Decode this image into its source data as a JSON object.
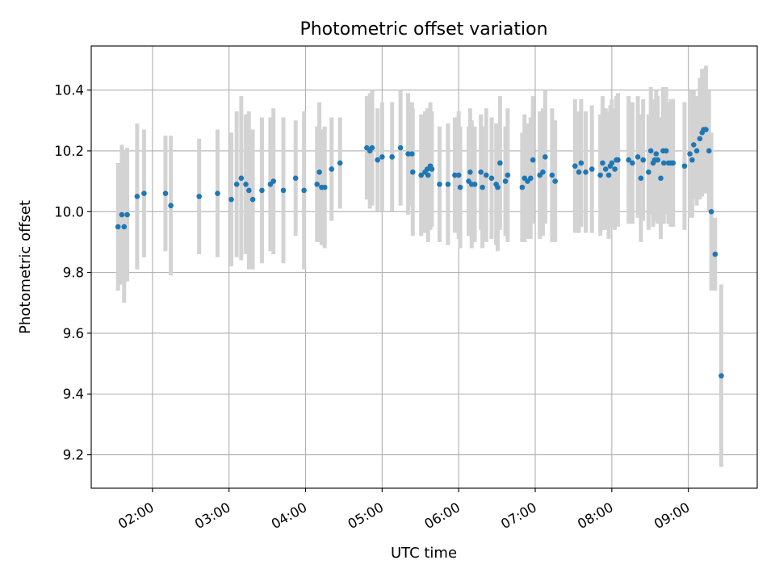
{
  "chart_data": {
    "type": "scatter",
    "title": "Photometric offset variation",
    "xlabel": "UTC time",
    "ylabel": "Photometric offset",
    "x_unit": "UTC hours",
    "xlim": [
      1.2,
      9.9
    ],
    "ylim": [
      9.09,
      10.545
    ],
    "x_ticks": [
      2,
      3,
      4,
      5,
      6,
      7,
      8,
      9
    ],
    "x_tick_labels": [
      "02:00",
      "03:00",
      "04:00",
      "05:00",
      "06:00",
      "07:00",
      "08:00",
      "09:00"
    ],
    "y_ticks": [
      9.2,
      9.4,
      9.6,
      9.8,
      10.0,
      10.2,
      10.4
    ],
    "y_tick_labels": [
      "9.2",
      "9.4",
      "9.6",
      "9.8",
      "10.0",
      "10.2",
      "10.4"
    ],
    "grid": true,
    "marker_color": "#1f77b4",
    "errorbar_color": "#d3d3d3",
    "series": [
      {
        "x": [
          1.55,
          1.6,
          1.63,
          1.67,
          1.8,
          1.89,
          2.17,
          2.24,
          2.61,
          2.85,
          3.03,
          3.1,
          3.16,
          3.22,
          3.26,
          3.31,
          3.43,
          3.54,
          3.58,
          3.71,
          3.87,
          3.98,
          4.15,
          4.18,
          4.21,
          4.25,
          4.34,
          4.45,
          4.8,
          4.84,
          4.87,
          4.94,
          5.0,
          5.13,
          5.24,
          5.34,
          5.39,
          5.4,
          5.51,
          5.56,
          5.59,
          5.6,
          5.63,
          5.65,
          5.75,
          5.86,
          5.95,
          6.0,
          6.02,
          6.13,
          6.15,
          6.17,
          6.21,
          6.29,
          6.31,
          6.36,
          6.43,
          6.49,
          6.51,
          6.54,
          6.61,
          6.64,
          6.83,
          6.86,
          6.9,
          6.94,
          6.97,
          7.06,
          7.1,
          7.13,
          7.22,
          7.26,
          7.52,
          7.57,
          7.6,
          7.66,
          7.74,
          7.85,
          7.88,
          7.92,
          7.96,
          7.98,
          8.0,
          8.04,
          8.06,
          8.08,
          8.22,
          8.27,
          8.34,
          8.38,
          8.41,
          8.48,
          8.51,
          8.54,
          8.56,
          8.58,
          8.6,
          8.64,
          8.67,
          8.68,
          8.71,
          8.74,
          8.77,
          8.8,
          8.95,
          9.02,
          9.05,
          9.07,
          9.11,
          9.15,
          9.18,
          9.2,
          9.23,
          9.27,
          9.3,
          9.35,
          9.43
        ],
        "y": [
          9.95,
          9.99,
          9.95,
          9.99,
          10.05,
          10.06,
          10.06,
          10.02,
          10.05,
          10.06,
          10.04,
          10.09,
          10.11,
          10.09,
          10.07,
          10.04,
          10.07,
          10.09,
          10.1,
          10.07,
          10.11,
          10.07,
          10.09,
          10.13,
          10.08,
          10.08,
          10.14,
          10.16,
          10.21,
          10.2,
          10.21,
          10.17,
          10.18,
          10.18,
          10.21,
          10.19,
          10.19,
          10.13,
          10.12,
          10.13,
          10.14,
          10.12,
          10.15,
          10.14,
          10.09,
          10.09,
          10.12,
          10.12,
          10.08,
          10.1,
          10.13,
          10.09,
          10.09,
          10.13,
          10.08,
          10.12,
          10.11,
          10.09,
          10.08,
          10.16,
          10.1,
          10.12,
          10.08,
          10.11,
          10.1,
          10.11,
          10.17,
          10.12,
          10.13,
          10.18,
          10.12,
          10.1,
          10.15,
          10.13,
          10.16,
          10.13,
          10.14,
          10.12,
          10.16,
          10.14,
          10.12,
          10.15,
          10.16,
          10.14,
          10.17,
          10.17,
          10.17,
          10.16,
          10.18,
          10.11,
          10.17,
          10.13,
          10.2,
          10.16,
          10.17,
          10.19,
          10.17,
          10.11,
          10.2,
          10.16,
          10.2,
          10.16,
          10.16,
          10.16,
          10.15,
          10.19,
          10.17,
          10.22,
          10.2,
          10.24,
          10.26,
          10.27,
          10.27,
          10.2,
          10.0,
          9.86,
          9.46
        ],
        "yerr": [
          0.21,
          0.23,
          0.25,
          0.22,
          0.24,
          0.21,
          0.19,
          0.23,
          0.19,
          0.21,
          0.22,
          0.24,
          0.27,
          0.23,
          0.26,
          0.23,
          0.24,
          0.22,
          0.24,
          0.24,
          0.19,
          0.26,
          0.19,
          0.23,
          0.19,
          0.2,
          0.17,
          0.15,
          0.17,
          0.19,
          0.19,
          0.17,
          0.18,
          0.18,
          0.19,
          0.2,
          0.17,
          0.21,
          0.2,
          0.2,
          0.2,
          0.22,
          0.21,
          0.19,
          0.19,
          0.2,
          0.19,
          0.21,
          0.2,
          0.18,
          0.21,
          0.21,
          0.19,
          0.19,
          0.2,
          0.22,
          0.2,
          0.2,
          0.21,
          0.22,
          0.18,
          0.22,
          0.18,
          0.21,
          0.19,
          0.2,
          0.21,
          0.21,
          0.21,
          0.22,
          0.22,
          0.2,
          0.22,
          0.2,
          0.21,
          0.2,
          0.21,
          0.2,
          0.22,
          0.2,
          0.21,
          0.2,
          0.21,
          0.2,
          0.21,
          0.22,
          0.21,
          0.2,
          0.2,
          0.21,
          0.2,
          0.19,
          0.21,
          0.21,
          0.2,
          0.21,
          0.21,
          0.2,
          0.21,
          0.2,
          0.21,
          0.2,
          0.21,
          0.21,
          0.21,
          0.21,
          0.19,
          0.18,
          0.18,
          0.2,
          0.21,
          0.2,
          0.21,
          0.2,
          0.26,
          0.12,
          0.3
        ]
      }
    ]
  }
}
